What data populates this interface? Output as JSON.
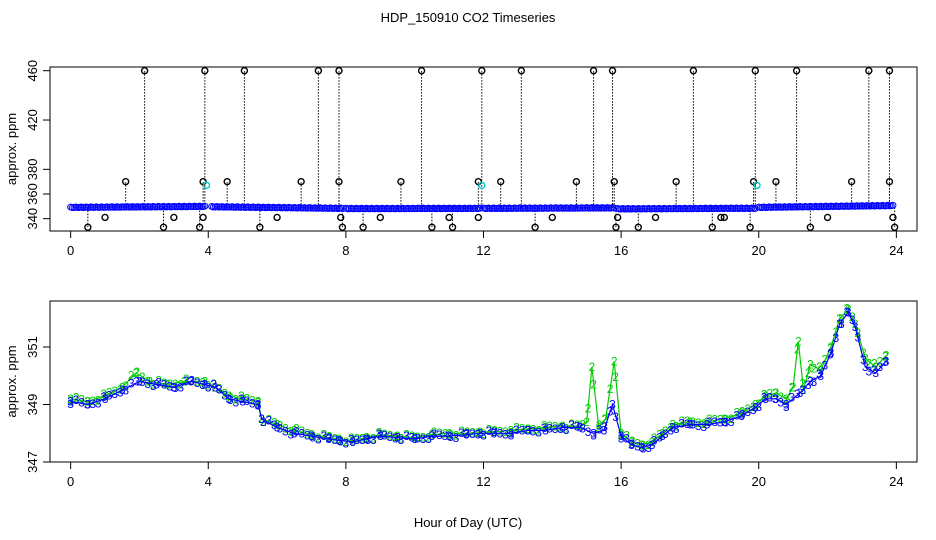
{
  "title": "HDP_150910  CO2 Timeseries",
  "xlabel": "Hour of Day (UTC)",
  "colors": {
    "axis": "#000000",
    "blue": "#0000ff",
    "green": "#00cc00",
    "cyan": "#00cccc",
    "black": "#000000"
  },
  "chart_data": [
    {
      "type": "scatter",
      "panel": "top",
      "ylabel": "approx. ppm",
      "xlim": [
        -0.6,
        24.6
      ],
      "ylim": [
        330,
        463
      ],
      "x_ticks": [
        0,
        4,
        8,
        12,
        16,
        20,
        24
      ],
      "y_ticks": [
        340,
        380,
        420,
        460
      ],
      "extra_y_ticks": [
        360
      ],
      "baseline_segments": [
        {
          "x": [
            0,
            3.9
          ],
          "y": [
            349,
            349.8
          ]
        },
        {
          "x": [
            4.1,
            7.9
          ],
          "y": [
            349.5,
            348.2
          ]
        },
        {
          "x": [
            8.0,
            11.9
          ],
          "y": [
            348.0,
            348.2
          ]
        },
        {
          "x": [
            12.0,
            15.8
          ],
          "y": [
            348.2,
            348.6
          ]
        },
        {
          "x": [
            15.9,
            19.9
          ],
          "y": [
            347.8,
            348.3
          ]
        },
        {
          "x": [
            20.0,
            23.9
          ],
          "y": [
            349.0,
            350.5
          ]
        }
      ],
      "spikes_460": [
        2.15,
        3.9,
        5.05,
        7.2,
        7.8,
        10.2,
        11.95,
        13.1,
        15.2,
        15.75,
        18.1,
        19.9,
        21.1,
        23.2,
        23.8
      ],
      "markers_370": [
        1.6,
        3.85,
        4.55,
        6.7,
        7.8,
        9.6,
        11.85,
        12.5,
        14.7,
        15.8,
        17.6,
        19.85,
        20.5,
        22.7,
        23.8
      ],
      "markers_341": [
        1.0,
        3.0,
        3.85,
        6.0,
        7.85,
        9.0,
        11.0,
        11.85,
        14.0,
        15.9,
        17.0,
        18.9,
        19.0,
        22.0,
        23.9
      ],
      "markers_333": [
        0.5,
        2.7,
        3.75,
        5.5,
        7.9,
        8.5,
        10.5,
        11.1,
        13.5,
        15.85,
        16.5,
        18.65,
        19.75,
        21.5,
        23.95
      ],
      "cyan_markers": [
        {
          "x": 3.95,
          "y": 367
        },
        {
          "x": 11.95,
          "y": 367
        },
        {
          "x": 19.95,
          "y": 367
        }
      ]
    },
    {
      "type": "line",
      "panel": "bottom",
      "ylabel": "approx. ppm",
      "xlim": [
        -0.6,
        24.6
      ],
      "ylim": [
        347,
        352.6
      ],
      "x_ticks": [
        0,
        4,
        8,
        12,
        16,
        20,
        24
      ],
      "y_ticks": [
        347,
        349,
        351
      ],
      "series": [
        {
          "name": "3",
          "color": "blue",
          "x": [
            0,
            0.5,
            1,
            1.5,
            2,
            2.5,
            3,
            3.5,
            3.9,
            4.2,
            4.6,
            5,
            5.45,
            5.55,
            6,
            6.5,
            7,
            7.5,
            7.8,
            8.2,
            8.6,
            9,
            9.5,
            10,
            10.5,
            11,
            11.5,
            11.9,
            12.3,
            12.8,
            13.3,
            13.8,
            14.3,
            14.8,
            15.2,
            15.5,
            15.75,
            16.0,
            16.3,
            16.6,
            16.9,
            17.2,
            17.5,
            18,
            18.5,
            19,
            19.5,
            19.9,
            20.2,
            20.5,
            20.8,
            21.2,
            21.5,
            21.8,
            22.1,
            22.35,
            22.6,
            22.8,
            23.1,
            23.4,
            23.7
          ],
          "y": [
            349.1,
            349.0,
            349.2,
            349.5,
            349.8,
            349.7,
            349.6,
            349.8,
            349.7,
            349.6,
            349.2,
            349.1,
            349.0,
            348.5,
            348.2,
            348.0,
            347.9,
            347.8,
            347.75,
            347.7,
            347.8,
            347.9,
            347.85,
            347.8,
            347.9,
            347.9,
            347.95,
            348.0,
            348.0,
            348.0,
            348.1,
            348.1,
            348.2,
            348.2,
            348.0,
            348.1,
            349.0,
            347.9,
            347.6,
            347.5,
            347.6,
            347.9,
            348.2,
            348.3,
            348.3,
            348.4,
            348.6,
            348.9,
            349.2,
            349.2,
            349.0,
            349.4,
            349.8,
            350.0,
            350.8,
            351.8,
            352.2,
            351.7,
            350.3,
            350.1,
            350.5
          ]
        },
        {
          "name": "2",
          "color": "green",
          "x": [
            0,
            0.5,
            1,
            1.5,
            1.9,
            2.3,
            2.8,
            3.3,
            3.9,
            4.2,
            4.6,
            5,
            5.45,
            5.55,
            6,
            6.5,
            7,
            7.5,
            7.8,
            8.2,
            8.6,
            9,
            9.5,
            10,
            10.5,
            11,
            11.5,
            11.9,
            12.3,
            12.8,
            13.3,
            13.8,
            14.3,
            14.8,
            15.0,
            15.15,
            15.35,
            15.55,
            15.8,
            16.0,
            16.3,
            16.6,
            16.9,
            17.2,
            17.5,
            18,
            18.5,
            19,
            19.5,
            19.9,
            20.2,
            20.5,
            20.8,
            21.0,
            21.15,
            21.3,
            21.5,
            21.8,
            22.1,
            22.35,
            22.6,
            22.8,
            23.1,
            23.4,
            23.7
          ],
          "y": [
            349.2,
            349.1,
            349.3,
            349.6,
            350.1,
            349.8,
            349.7,
            349.8,
            349.8,
            349.6,
            349.3,
            349.2,
            349.1,
            348.5,
            348.3,
            348.1,
            347.95,
            347.85,
            347.8,
            347.75,
            347.85,
            347.95,
            347.9,
            347.85,
            347.95,
            348.0,
            348.0,
            348.05,
            348.05,
            348.1,
            348.15,
            348.2,
            348.25,
            348.25,
            348.4,
            350.3,
            348.2,
            348.5,
            350.5,
            348.0,
            347.7,
            347.6,
            347.7,
            348.0,
            348.3,
            348.4,
            348.4,
            348.5,
            348.7,
            349.0,
            349.3,
            349.4,
            349.2,
            349.6,
            351.2,
            349.5,
            350.4,
            350.2,
            351.0,
            352.0,
            352.3,
            351.8,
            350.6,
            350.3,
            350.7
          ]
        }
      ]
    }
  ]
}
